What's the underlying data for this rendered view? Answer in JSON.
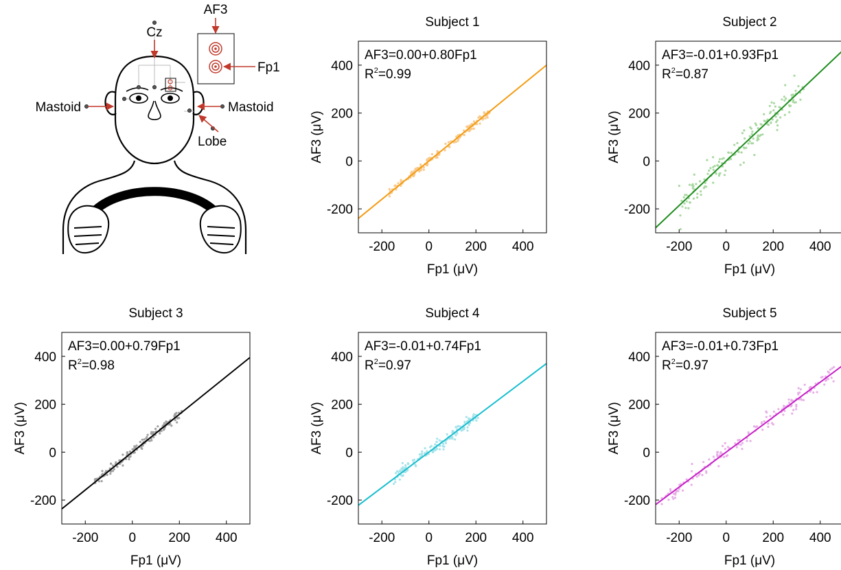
{
  "diagram": {
    "labels": {
      "cz": "Cz",
      "af3": "AF3",
      "fp1": "Fp1",
      "mastoid_left": "Mastoid",
      "mastoid_right": "Mastoid",
      "lobe": "Lobe"
    },
    "colors": {
      "line": "#000000",
      "electrode_highlight": "#c0392b"
    }
  },
  "chart_data": [
    {
      "type": "scatter",
      "title": "Subject 1",
      "xlabel": "Fp1 (μV)",
      "ylabel": "AF3 (μV)",
      "xlim": [
        -300,
        500
      ],
      "ylim": [
        -300,
        500
      ],
      "xticks": [
        -200,
        0,
        200,
        400
      ],
      "yticks": [
        -200,
        0,
        200,
        400
      ],
      "equation": "AF3=0.00+0.80Fp1",
      "r2_value": "0.99",
      "fit": {
        "intercept": 0.0,
        "slope": 0.8
      },
      "point_range": [
        -170,
        260
      ],
      "spread": 8,
      "color": "#f39c12",
      "point_color": "#f8c98a"
    },
    {
      "type": "scatter",
      "title": "Subject 2",
      "xlabel": "Fp1 (μV)",
      "ylabel": "AF3 (μV)",
      "xlim": [
        -300,
        500
      ],
      "ylim": [
        -300,
        500
      ],
      "xticks": [
        -200,
        0,
        200,
        400
      ],
      "yticks": [
        -200,
        0,
        200,
        400
      ],
      "equation": "AF3=-0.01+0.93Fp1",
      "r2_value": "0.87",
      "fit": {
        "intercept": -0.01,
        "slope": 0.93
      },
      "point_range": [
        -200,
        330
      ],
      "spread": 30,
      "color": "#1e8c1e",
      "point_color": "#a8d8a0"
    },
    {
      "type": "scatter",
      "title": "Subject 3",
      "xlabel": "Fp1 (μV)",
      "ylabel": "AF3 (μV)",
      "xlim": [
        -300,
        500
      ],
      "ylim": [
        -300,
        500
      ],
      "xticks": [
        -200,
        0,
        200,
        400
      ],
      "yticks": [
        -200,
        0,
        200,
        400
      ],
      "equation": "AF3=0.00+0.79Fp1",
      "r2_value": "0.98",
      "fit": {
        "intercept": 0.0,
        "slope": 0.79
      },
      "point_range": [
        -160,
        210
      ],
      "spread": 10,
      "color": "#000000",
      "point_color": "#a0a0a0"
    },
    {
      "type": "scatter",
      "title": "Subject 4",
      "xlabel": "Fp1 (μV)",
      "ylabel": "AF3 (μV)",
      "xlim": [
        -300,
        500
      ],
      "ylim": [
        -300,
        500
      ],
      "xticks": [
        -200,
        0,
        200,
        400
      ],
      "yticks": [
        -200,
        0,
        200,
        400
      ],
      "equation": "AF3=-0.01+0.74Fp1",
      "r2_value": "0.97",
      "fit": {
        "intercept": -0.01,
        "slope": 0.74
      },
      "point_range": [
        -150,
        210
      ],
      "spread": 12,
      "color": "#17becf",
      "point_color": "#a6e3ea"
    },
    {
      "type": "scatter",
      "title": "Subject 5",
      "xlabel": "Fp1 (μV)",
      "ylabel": "AF3 (μV)",
      "xlim": [
        -300,
        500
      ],
      "ylim": [
        -300,
        500
      ],
      "xticks": [
        -200,
        0,
        200,
        400
      ],
      "yticks": [
        -200,
        0,
        200,
        400
      ],
      "equation": "AF3=-0.01+0.73Fp1",
      "r2_value": "0.97",
      "fit": {
        "intercept": -0.01,
        "slope": 0.73
      },
      "point_range": [
        -280,
        460
      ],
      "spread": 18,
      "color": "#c71fc7",
      "point_color": "#e6b0e6"
    }
  ]
}
